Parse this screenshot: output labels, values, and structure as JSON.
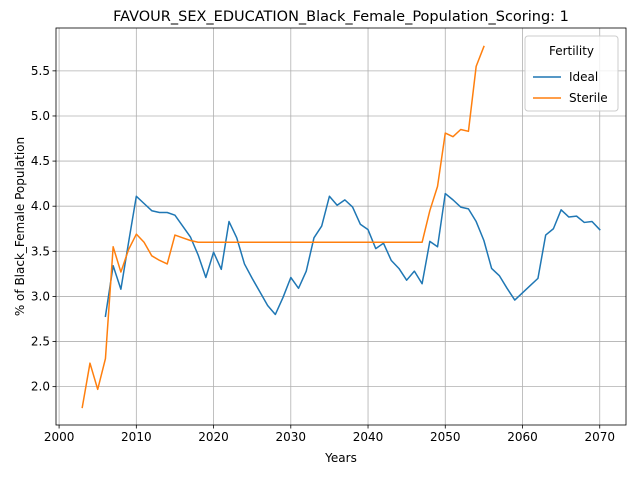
{
  "chart_data": {
    "type": "line",
    "title": "FAVOUR_SEX_EDUCATION_Black_Female_Population_Scoring: 1",
    "xlabel": "Years",
    "ylabel": "% of Black_Female Population",
    "xlim": [
      1999.6,
      2073.4
    ],
    "ylim": [
      1.575,
      5.975
    ],
    "xticks": [
      2000,
      2010,
      2020,
      2030,
      2040,
      2050,
      2060,
      2070
    ],
    "yticks": [
      2.0,
      2.5,
      3.0,
      3.5,
      4.0,
      4.5,
      5.0,
      5.5
    ],
    "xtick_labels": [
      "2000",
      "2010",
      "2020",
      "2030",
      "2040",
      "2050",
      "2060",
      "2070"
    ],
    "ytick_labels": [
      "2.0",
      "2.5",
      "3.0",
      "3.5",
      "4.0",
      "4.5",
      "5.0",
      "5.5"
    ],
    "grid": true,
    "legend": {
      "title": "Fertility",
      "placement": "top-right"
    },
    "series": [
      {
        "name": "Ideal",
        "color": "#1f77b4",
        "x": [
          2006,
          2007,
          2008,
          2009,
          2010,
          2011,
          2012,
          2013,
          2014,
          2015,
          2016,
          2017,
          2018,
          2019,
          2020,
          2021,
          2022,
          2023,
          2024,
          2025,
          2026,
          2027,
          2028,
          2029,
          2030,
          2031,
          2032,
          2033,
          2034,
          2035,
          2036,
          2037,
          2038,
          2039,
          2040,
          2041,
          2042,
          2043,
          2044,
          2045,
          2046,
          2047,
          2048,
          2049,
          2050,
          2051,
          2052,
          2053,
          2054,
          2055,
          2056,
          2057,
          2058,
          2059,
          2060,
          2061,
          2062,
          2063,
          2064,
          2065,
          2066,
          2067,
          2068,
          2069,
          2070
        ],
        "y": [
          2.78,
          3.34,
          3.08,
          3.6,
          4.11,
          4.03,
          3.95,
          3.93,
          3.93,
          3.9,
          3.78,
          3.66,
          3.46,
          3.21,
          3.49,
          3.3,
          3.83,
          3.65,
          3.36,
          3.2,
          3.05,
          2.9,
          2.8,
          2.99,
          3.21,
          3.09,
          3.28,
          3.65,
          3.78,
          4.11,
          4.01,
          4.07,
          3.99,
          3.8,
          3.74,
          3.53,
          3.59,
          3.4,
          3.31,
          3.18,
          3.28,
          3.14,
          3.61,
          3.55,
          4.14,
          4.07,
          3.99,
          3.97,
          3.83,
          3.62,
          3.31,
          3.23,
          3.09,
          2.96,
          3.04,
          3.12,
          3.2,
          3.68,
          3.75,
          3.96,
          3.88,
          3.89,
          3.82,
          3.83,
          3.74
        ]
      },
      {
        "name": "Sterile",
        "color": "#ff7f0e",
        "x": [
          2003,
          2004,
          2005,
          2006,
          2007,
          2008,
          2009,
          2010,
          2011,
          2012,
          2013,
          2014,
          2015,
          2016,
          2017,
          2018,
          2019,
          2020,
          2021,
          2022,
          2023,
          2024,
          2025,
          2026,
          2027,
          2028,
          2029,
          2030,
          2031,
          2032,
          2033,
          2034,
          2035,
          2036,
          2037,
          2038,
          2039,
          2040,
          2041,
          2042,
          2043,
          2044,
          2045,
          2046,
          2047,
          2048,
          2049,
          2050,
          2051,
          2052,
          2053,
          2054,
          2055
        ],
        "y": [
          1.77,
          2.26,
          1.97,
          2.31,
          3.55,
          3.27,
          3.52,
          3.69,
          3.6,
          3.45,
          3.4,
          3.36,
          3.68,
          3.65,
          3.62,
          3.6,
          3.6,
          3.6,
          3.6,
          3.6,
          3.6,
          3.6,
          3.6,
          3.6,
          3.6,
          3.6,
          3.6,
          3.6,
          3.6,
          3.6,
          3.6,
          3.6,
          3.6,
          3.6,
          3.6,
          3.6,
          3.6,
          3.6,
          3.6,
          3.6,
          3.6,
          3.6,
          3.6,
          3.6,
          3.6,
          3.95,
          4.22,
          4.81,
          4.77,
          4.85,
          4.83,
          5.55,
          5.77
        ]
      }
    ]
  }
}
